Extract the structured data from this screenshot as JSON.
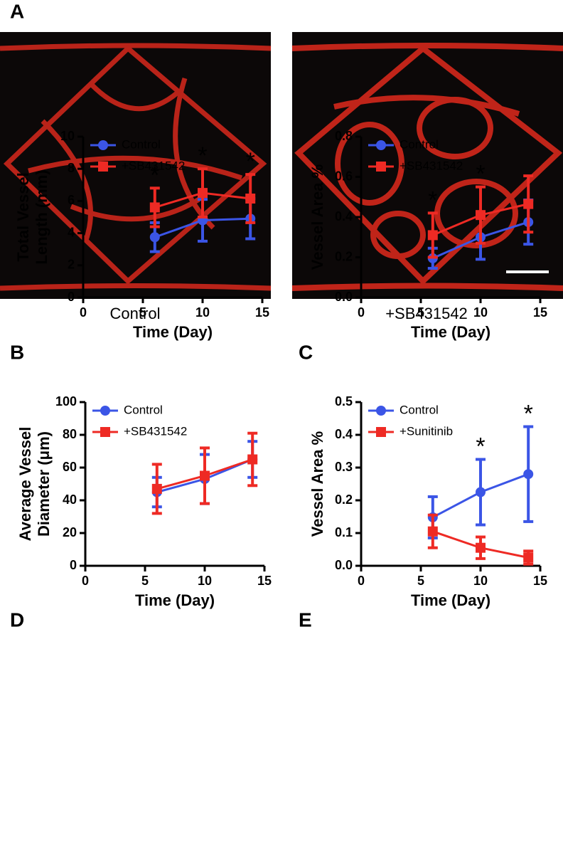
{
  "panel_a": {
    "label": "A",
    "captions": [
      "Control",
      "+SB431542"
    ]
  },
  "chart_data": [
    {
      "type": "line",
      "panel_label": "B",
      "ylabel": [
        "Total Vessel",
        "Length (mm)"
      ],
      "xlabel": "Time (Day)",
      "x": [
        6,
        10,
        14
      ],
      "xlim": [
        0,
        15
      ],
      "xticks": [
        0,
        5,
        10,
        15
      ],
      "ylim": [
        0,
        10
      ],
      "yticks": [
        0,
        2,
        4,
        6,
        8,
        10
      ],
      "series": [
        {
          "name": "Control",
          "color": "#3b55e6",
          "marker": "circle",
          "values": [
            3.75,
            4.8,
            4.9
          ],
          "errors": [
            0.9,
            1.3,
            1.25
          ]
        },
        {
          "name": "+SB431542",
          "color": "#ee2a24",
          "marker": "square",
          "values": [
            5.6,
            6.5,
            6.15
          ],
          "errors": [
            1.2,
            1.5,
            1.5
          ]
        }
      ],
      "annotations": [
        {
          "text": "*",
          "x": 6
        },
        {
          "text": "*",
          "x": 10
        },
        {
          "text": "*",
          "x": 14
        }
      ]
    },
    {
      "type": "line",
      "panel_label": "C",
      "ylabel": [
        "Vessel Area %"
      ],
      "xlabel": "Time (Day)",
      "x": [
        6,
        10,
        14
      ],
      "xlim": [
        0,
        15
      ],
      "xticks": [
        0,
        5,
        10,
        15
      ],
      "ylim": [
        0,
        0.8
      ],
      "yticks": [
        {
          "value": 0,
          "label": "0.0"
        },
        0.2,
        0.4,
        0.6,
        0.8
      ],
      "series": [
        {
          "name": "Control",
          "color": "#3b55e6",
          "marker": "circle",
          "values": [
            0.195,
            0.3,
            0.375
          ],
          "errors": [
            0.05,
            0.11,
            0.11
          ]
        },
        {
          "name": "+SB431542",
          "color": "#ee2a24",
          "marker": "square",
          "values": [
            0.31,
            0.41,
            0.465
          ],
          "errors": [
            0.11,
            0.14,
            0.14
          ]
        }
      ],
      "annotations": [
        {
          "text": "*",
          "x": 6
        },
        {
          "text": "*",
          "x": 10
        }
      ]
    },
    {
      "type": "line",
      "panel_label": "D",
      "ylabel": [
        "Average Vessel",
        "Diameter (μm)"
      ],
      "xlabel": "Time (Day)",
      "x": [
        6,
        10,
        14
      ],
      "xlim": [
        0,
        15
      ],
      "xticks": [
        0,
        5,
        10,
        15
      ],
      "ylim": [
        0,
        100
      ],
      "yticks": [
        0,
        20,
        40,
        60,
        80,
        100
      ],
      "series": [
        {
          "name": "Control",
          "color": "#3b55e6",
          "marker": "circle",
          "values": [
            45,
            53,
            65
          ],
          "errors": [
            9,
            15,
            11
          ]
        },
        {
          "name": "+SB431542",
          "color": "#ee2a24",
          "marker": "square",
          "values": [
            47,
            55,
            65
          ],
          "errors": [
            15,
            17,
            16
          ]
        }
      ],
      "annotations": []
    },
    {
      "type": "line",
      "panel_label": "E",
      "ylabel": [
        "Vessel Area %"
      ],
      "xlabel": "Time (Day)",
      "x": [
        6,
        10,
        14
      ],
      "xlim": [
        0,
        15
      ],
      "xticks": [
        0,
        5,
        10,
        15
      ],
      "ylim": [
        0,
        0.5
      ],
      "yticks": [
        {
          "value": 0,
          "label": "0.0"
        },
        0.1,
        0.2,
        0.3,
        0.4,
        0.5
      ],
      "series": [
        {
          "name": "Control",
          "color": "#3b55e6",
          "marker": "circle",
          "values": [
            0.148,
            0.225,
            0.28
          ],
          "errors": [
            0.063,
            0.1,
            0.145
          ]
        },
        {
          "name": "+Sunitinib",
          "color": "#ee2a24",
          "marker": "square",
          "values": [
            0.105,
            0.055,
            0.025
          ],
          "errors": [
            0.05,
            0.033,
            0.02
          ]
        }
      ],
      "annotations": [
        {
          "text": "*",
          "x": 10
        },
        {
          "text": "*",
          "x": 14
        }
      ]
    }
  ]
}
